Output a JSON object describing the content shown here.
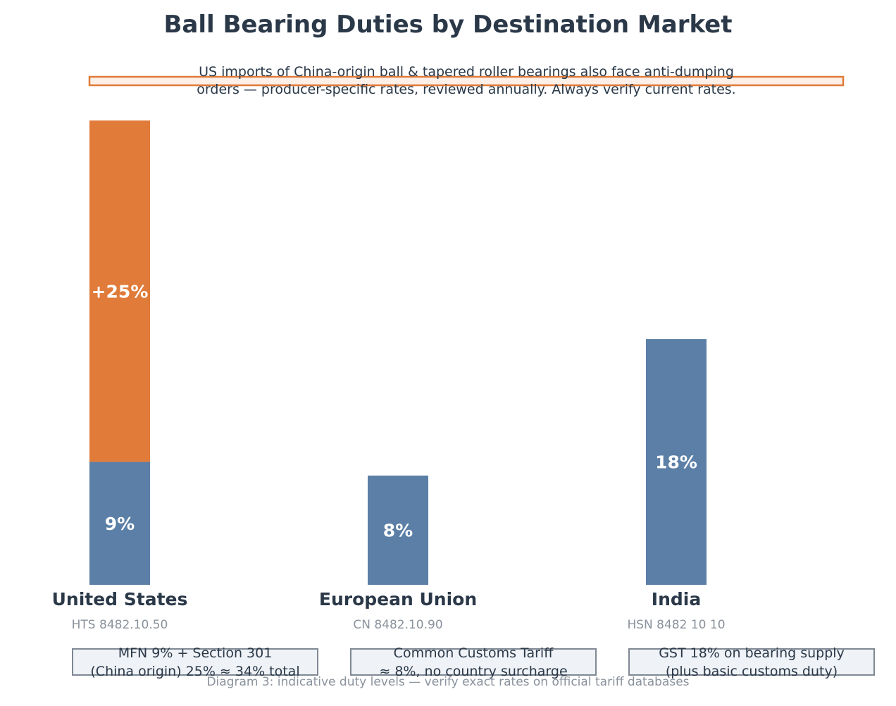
{
  "chart_data": {
    "type": "bar",
    "title": "Ball Bearing Duties by Destination Market",
    "note_lines": [
      "US imports of China-origin ball & tapered roller bearings also face anti-dumping",
      "orders — producer-specific rates, reviewed annually. Always verify current rates."
    ],
    "categories": [
      "United States",
      "European Union",
      "India"
    ],
    "codes": [
      "HTS 8482.10.50",
      "CN 8482.10.90",
      "HSN 8482 10 10"
    ],
    "series": [
      {
        "values": [
          9,
          8,
          18
        ],
        "labels": [
          "9%",
          "8%",
          "18%"
        ],
        "color": "#5b7fa6"
      },
      {
        "values": [
          25,
          0,
          0
        ],
        "labels": [
          "+25%",
          "",
          ""
        ],
        "color": "#e07b39"
      }
    ],
    "ylim": [
      0,
      34
    ],
    "grid": false,
    "boxes": [
      [
        "MFN 9%  +  Section 301",
        "(China origin) 25%  ≈  34% total"
      ],
      [
        "Common Customs Tariff",
        "≈ 8%, no country surcharge"
      ],
      [
        "GST 18% on bearing supply",
        "(plus basic customs duty)"
      ]
    ],
    "caption": "Diagram 3: indicative duty levels — verify exact rates on official tariff databases"
  },
  "colors": {
    "text": "#2a3848",
    "muted": "#8a929c",
    "note_border": "#e07b39",
    "note_fill": "#fdf0e8",
    "box_border": "#7f8893",
    "box_fill": "#eff2f6"
  }
}
